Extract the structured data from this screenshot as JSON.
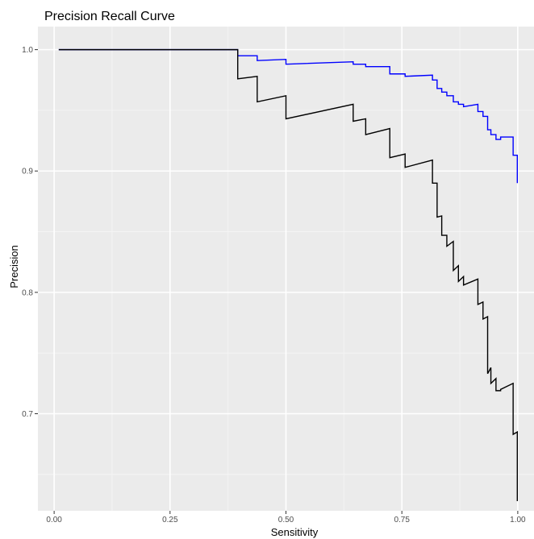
{
  "chart_data": {
    "type": "line",
    "title": "Precision Recall Curve",
    "xlabel": "Sensitivity",
    "ylabel": "Precision",
    "xlim": [
      -0.035,
      1.035
    ],
    "ylim": [
      0.62,
      1.019
    ],
    "x_ticks": [
      0.0,
      0.25,
      0.5,
      0.75,
      1.0
    ],
    "x_tick_labels": [
      "0.00",
      "0.25",
      "0.50",
      "0.75",
      "1.00"
    ],
    "y_ticks": [
      0.7,
      0.8,
      0.9,
      1.0
    ],
    "y_tick_labels": [
      "0.7",
      "0.8",
      "0.9",
      "1.0"
    ],
    "grid": true,
    "legend": "none",
    "colors": {
      "panel": "#ebebeb",
      "grid_major": "#ffffff",
      "grid_minor": "#f5f5f5",
      "tick": "#333333"
    },
    "series": [
      {
        "color": "#0000ff",
        "points": [
          [
            0.01,
            1.0
          ],
          [
            0.396,
            1.0
          ],
          [
            0.396,
            0.995
          ],
          [
            0.438,
            0.995
          ],
          [
            0.438,
            0.991
          ],
          [
            0.5,
            0.992
          ],
          [
            0.5,
            0.988
          ],
          [
            0.645,
            0.99
          ],
          [
            0.645,
            0.988
          ],
          [
            0.672,
            0.988
          ],
          [
            0.672,
            0.986
          ],
          [
            0.724,
            0.986
          ],
          [
            0.724,
            0.98
          ],
          [
            0.757,
            0.98
          ],
          [
            0.757,
            0.978
          ],
          [
            0.816,
            0.979
          ],
          [
            0.816,
            0.975
          ],
          [
            0.826,
            0.975
          ],
          [
            0.826,
            0.968
          ],
          [
            0.836,
            0.968
          ],
          [
            0.836,
            0.965
          ],
          [
            0.847,
            0.965
          ],
          [
            0.847,
            0.962
          ],
          [
            0.861,
            0.962
          ],
          [
            0.861,
            0.957
          ],
          [
            0.872,
            0.957
          ],
          [
            0.872,
            0.955
          ],
          [
            0.883,
            0.955
          ],
          [
            0.883,
            0.953
          ],
          [
            0.914,
            0.955
          ],
          [
            0.914,
            0.949
          ],
          [
            0.925,
            0.949
          ],
          [
            0.925,
            0.945
          ],
          [
            0.935,
            0.945
          ],
          [
            0.935,
            0.934
          ],
          [
            0.942,
            0.934
          ],
          [
            0.942,
            0.93
          ],
          [
            0.953,
            0.93
          ],
          [
            0.953,
            0.926
          ],
          [
            0.963,
            0.926
          ],
          [
            0.963,
            0.928
          ],
          [
            0.99,
            0.928
          ],
          [
            0.99,
            0.913
          ],
          [
            0.999,
            0.913
          ],
          [
            0.999,
            0.89
          ]
        ]
      },
      {
        "color": "#000000",
        "points": [
          [
            0.01,
            1.0
          ],
          [
            0.396,
            1.0
          ],
          [
            0.396,
            0.976
          ],
          [
            0.438,
            0.978
          ],
          [
            0.438,
            0.957
          ],
          [
            0.5,
            0.962
          ],
          [
            0.5,
            0.943
          ],
          [
            0.645,
            0.955
          ],
          [
            0.645,
            0.941
          ],
          [
            0.672,
            0.943
          ],
          [
            0.672,
            0.93
          ],
          [
            0.724,
            0.935
          ],
          [
            0.724,
            0.911
          ],
          [
            0.757,
            0.914
          ],
          [
            0.757,
            0.903
          ],
          [
            0.816,
            0.909
          ],
          [
            0.816,
            0.89
          ],
          [
            0.826,
            0.89
          ],
          [
            0.826,
            0.862
          ],
          [
            0.836,
            0.863
          ],
          [
            0.836,
            0.847
          ],
          [
            0.847,
            0.847
          ],
          [
            0.847,
            0.838
          ],
          [
            0.861,
            0.842
          ],
          [
            0.861,
            0.818
          ],
          [
            0.872,
            0.822
          ],
          [
            0.872,
            0.809
          ],
          [
            0.883,
            0.813
          ],
          [
            0.883,
            0.806
          ],
          [
            0.914,
            0.811
          ],
          [
            0.914,
            0.79
          ],
          [
            0.925,
            0.792
          ],
          [
            0.925,
            0.778
          ],
          [
            0.935,
            0.78
          ],
          [
            0.935,
            0.733
          ],
          [
            0.942,
            0.738
          ],
          [
            0.942,
            0.725
          ],
          [
            0.953,
            0.729
          ],
          [
            0.953,
            0.719
          ],
          [
            0.963,
            0.719
          ],
          [
            0.963,
            0.72
          ],
          [
            0.99,
            0.725
          ],
          [
            0.99,
            0.683
          ],
          [
            0.999,
            0.685
          ],
          [
            0.999,
            0.628
          ]
        ]
      }
    ]
  }
}
